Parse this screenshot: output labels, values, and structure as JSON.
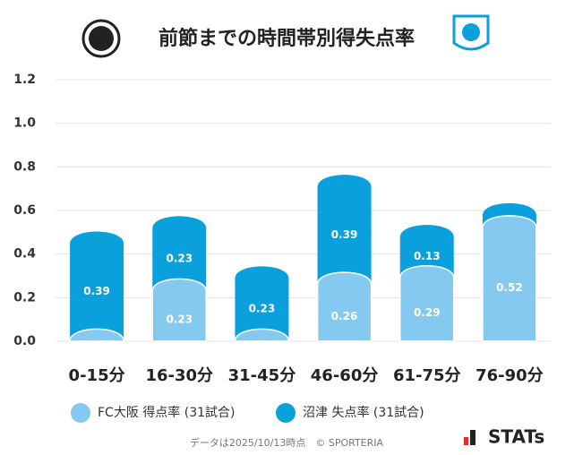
{
  "chart_data": {
    "type": "bar",
    "title": "前節までの時間帯別得失点率",
    "categories": [
      "0-15分",
      "16-30分",
      "31-45分",
      "46-60分",
      "61-75分",
      "76-90分"
    ],
    "series": [
      {
        "name": "FC大阪 得点率 (31試合)",
        "color": "#86c9f0",
        "values": [
          0,
          0.23,
          0,
          0.26,
          0.29,
          0.52
        ]
      },
      {
        "name": "沼津 失点率 (31試合)",
        "color": "#0aa0dc",
        "values": [
          0.39,
          0.23,
          0.23,
          0.39,
          0.13,
          0
        ]
      }
    ],
    "ylim": [
      0,
      1.2
    ],
    "yticks": [
      {
        "value": 0,
        "label": "0.0"
      },
      {
        "value": 0.2,
        "label": "0.2"
      },
      {
        "value": 0.4,
        "label": "0.4"
      },
      {
        "value": 0.6,
        "label": "0.6"
      },
      {
        "value": 0.8,
        "label": "0.8"
      },
      {
        "value": 1,
        "label": "1.0"
      },
      {
        "value": 1.2,
        "label": "1.2"
      }
    ],
    "grid": true,
    "footer": "データは2025/10/13時点　© SPORTERIA",
    "brand": "STATs"
  }
}
